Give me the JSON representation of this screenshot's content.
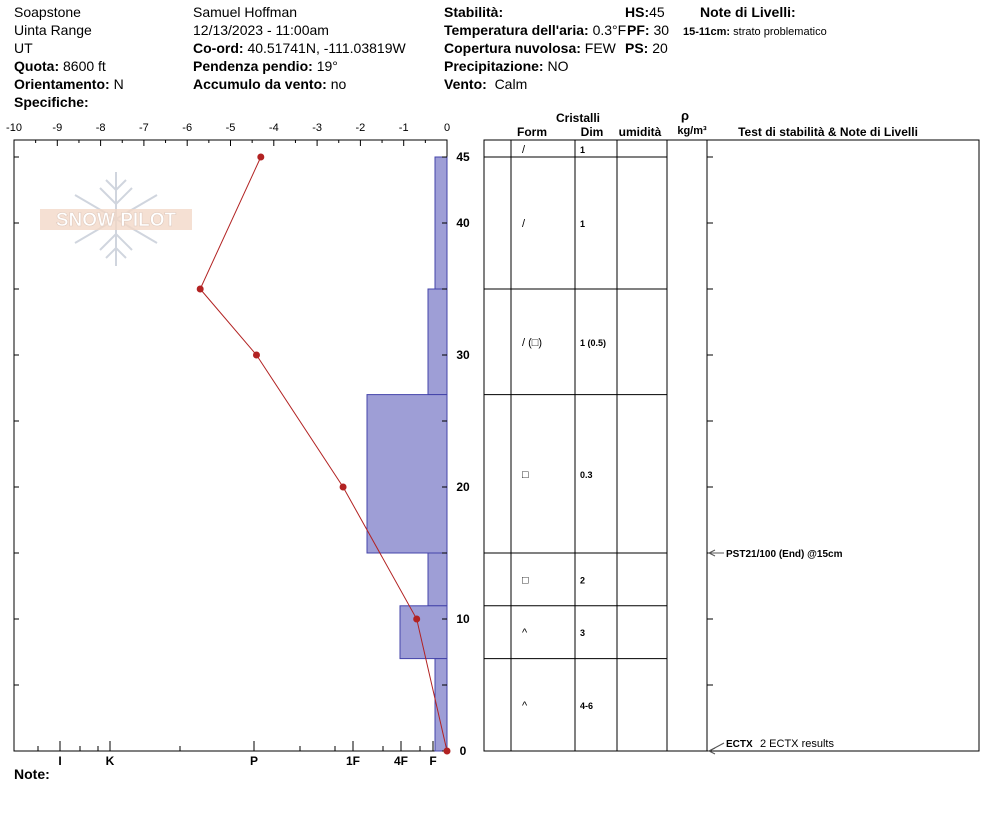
{
  "header": {
    "location": "Soapstone",
    "range": "Uinta Range",
    "state": "UT",
    "observer": "Samuel Hoffman",
    "datetime": "12/13/2023 - 11:00am",
    "quota_label": "Quota:",
    "quota_value": "8600 ft",
    "orient_label": "Orientamento:",
    "orient_value": "N",
    "specifiche_label": "Specifiche:",
    "coord_label": "Co-ord:",
    "coord_value": "40.51741N, -111.03819W",
    "pendenza_label": "Pendenza pendio:",
    "pendenza_value": "19°",
    "accumulo_label": "Accumulo da vento:",
    "accumulo_value": "no",
    "stabilita_label": "Stabilità:",
    "temp_label": "Temperatura dell'aria:",
    "temp_value": "0.3°F",
    "nuvolosa_label": "Copertura nuvolosa:",
    "nuvolosa_value": "FEW",
    "precip_label": "Precipitazione:",
    "precip_value": "NO",
    "vento_label": "Vento:",
    "vento_value": "Calm",
    "hs_label": "HS:",
    "hs_value": "45",
    "pf_label": "PF:",
    "pf_value": "30",
    "ps_label": "PS:",
    "ps_value": "20",
    "note_livelli_label": "Note di Livelli:",
    "note_livelli_depth": "15-11cm:",
    "note_livelli_text": "strato problematico",
    "note_label": "Note:"
  },
  "table": {
    "cristalli_label": "Cristalli",
    "form_label": "Form",
    "dim_label": "Dim",
    "umidita_label": "umidità",
    "rho_label": "ρ",
    "density_unit": "kg/m³",
    "tests_label": "Test di stabilità & Note di Livelli"
  },
  "watermark": {
    "text": "SNOW PILOT"
  },
  "chart_data": {
    "type": "snow-profile",
    "x_ticks": [
      "-10",
      "-9",
      "-8",
      "-7",
      "-6",
      "-5",
      "-4",
      "-3",
      "-2",
      "-1",
      "0"
    ],
    "xlim": [
      -10,
      0
    ],
    "y_ticks": [
      "45",
      "40",
      "30",
      "20",
      "10",
      "0"
    ],
    "ylim": [
      0,
      46
    ],
    "hardness_labels": [
      {
        "label": "I",
        "value": 1
      },
      {
        "label": "K",
        "value": 2
      },
      {
        "label": "P",
        "value": 3
      },
      {
        "label": "1F",
        "value": 4
      },
      {
        "label": "4F",
        "value": 5
      },
      {
        "label": "F",
        "value": 6
      }
    ],
    "temperature_profile": [
      {
        "depth": 45,
        "temp": -4.3
      },
      {
        "depth": 35,
        "temp": -5.7
      },
      {
        "depth": 30,
        "temp": -4.4
      },
      {
        "depth": 20,
        "temp": -2.4
      },
      {
        "depth": 10,
        "temp": -0.7
      },
      {
        "depth": 0,
        "temp": 0
      }
    ],
    "layers": [
      {
        "top": 45,
        "bottom": 35,
        "hardness": "F",
        "form": "/",
        "size": "1"
      },
      {
        "top": 35,
        "bottom": 27,
        "hardness": "4F-",
        "form": "/ (□)",
        "size": "1 (0.5)"
      },
      {
        "top": 27,
        "bottom": 15,
        "hardness": "1F",
        "form": "□",
        "size": "0.3"
      },
      {
        "top": 15,
        "bottom": 11,
        "hardness": "4F-",
        "form": "□",
        "size": "2"
      },
      {
        "top": 11,
        "bottom": 7,
        "hardness": "4F",
        "form": "^",
        "size": "3"
      },
      {
        "top": 7,
        "bottom": 0,
        "hardness": "F",
        "form": "^",
        "size": "4-6"
      }
    ],
    "stability_tests": [
      {
        "depth": 15,
        "text": "PST21/100 (End) @15cm"
      },
      {
        "depth": 0,
        "text": "ECTX",
        "detail": "2 ECTX results"
      }
    ]
  },
  "colors": {
    "hardness_fill": "#9e9ed6",
    "hardness_stroke": "#4444aa",
    "temp_line": "#b22222"
  }
}
